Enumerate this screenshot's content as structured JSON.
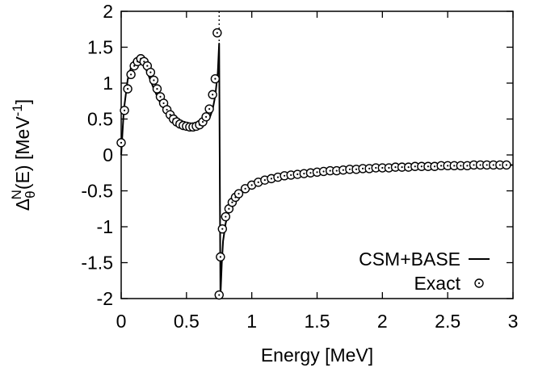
{
  "chart_data": {
    "type": "line",
    "xlabel": "Energy [MeV]",
    "ylabel": {
      "base": "Δ",
      "sub": "θ",
      "sup": "N",
      "arg": "(E) [MeV",
      "unit_sup": "-1",
      "close": "]"
    },
    "xlim": [
      0,
      3
    ],
    "ylim": [
      -2,
      2
    ],
    "x_ticks": [
      0,
      0.5,
      1,
      1.5,
      2,
      2.5,
      3
    ],
    "x_tick_labels": [
      "0",
      "0.5",
      "1",
      "1.5",
      "2",
      "2.5",
      "3"
    ],
    "y_ticks": [
      -2,
      -1.5,
      -1,
      -0.5,
      0,
      0.5,
      1,
      1.5,
      2
    ],
    "y_tick_labels": [
      "-2",
      "-1.5",
      "-1",
      "-0.5",
      "0",
      "0.5",
      "1",
      "1.5",
      "2"
    ],
    "grid": false,
    "legend_position": "bottom-right",
    "threshold_line_x": 0.75,
    "series": [
      {
        "name": "CSM+BASE",
        "style": "line",
        "color": "#000000",
        "x": [
          0,
          0.02,
          0.05,
          0.08,
          0.1,
          0.12,
          0.15,
          0.18,
          0.2,
          0.25,
          0.3,
          0.35,
          0.4,
          0.45,
          0.5,
          0.55,
          0.6,
          0.65,
          0.68,
          0.7,
          0.72,
          0.74,
          0.75,
          0.76,
          0.77,
          0.78,
          0.8,
          0.82,
          0.85,
          0.9,
          0.95,
          1.0,
          1.1,
          1.2,
          1.3,
          1.5,
          1.7,
          2.0,
          2.3,
          2.6,
          3.0
        ],
        "y": [
          0,
          0.62,
          1.05,
          1.25,
          1.32,
          1.34,
          1.31,
          1.24,
          1.15,
          0.92,
          0.72,
          0.58,
          0.48,
          0.42,
          0.39,
          0.38,
          0.4,
          0.46,
          0.53,
          0.63,
          0.82,
          1.15,
          1.55,
          -1.97,
          -1.52,
          -1.2,
          -0.95,
          -0.82,
          -0.68,
          -0.54,
          -0.46,
          -0.4,
          -0.33,
          -0.29,
          -0.26,
          -0.22,
          -0.2,
          -0.18,
          -0.16,
          -0.15,
          -0.14
        ]
      },
      {
        "name": "Exact",
        "style": "points",
        "color": "#000000",
        "x": [
          0,
          0.025,
          0.05,
          0.075,
          0.1,
          0.125,
          0.15,
          0.175,
          0.2,
          0.225,
          0.25,
          0.275,
          0.3,
          0.325,
          0.35,
          0.375,
          0.4,
          0.425,
          0.45,
          0.475,
          0.5,
          0.525,
          0.55,
          0.575,
          0.6,
          0.625,
          0.65,
          0.675,
          0.7,
          0.72,
          0.735,
          0.75,
          0.76,
          0.775,
          0.8,
          0.825,
          0.85,
          0.875,
          0.9,
          0.95,
          1.0,
          1.05,
          1.1,
          1.15,
          1.2,
          1.25,
          1.3,
          1.35,
          1.4,
          1.45,
          1.5,
          1.55,
          1.6,
          1.65,
          1.7,
          1.75,
          1.8,
          1.85,
          1.9,
          1.95,
          2.0,
          2.05,
          2.1,
          2.15,
          2.2,
          2.25,
          2.3,
          2.35,
          2.4,
          2.45,
          2.5,
          2.55,
          2.6,
          2.65,
          2.7,
          2.75,
          2.8,
          2.85,
          2.9,
          2.95
        ],
        "y": [
          0.17,
          0.62,
          0.92,
          1.12,
          1.24,
          1.3,
          1.34,
          1.3,
          1.24,
          1.15,
          1.04,
          0.92,
          0.81,
          0.72,
          0.63,
          0.56,
          0.5,
          0.46,
          0.43,
          0.41,
          0.4,
          0.39,
          0.39,
          0.4,
          0.42,
          0.46,
          0.53,
          0.64,
          0.84,
          1.06,
          1.7,
          -1.95,
          -1.42,
          -1.03,
          -0.86,
          -0.75,
          -0.66,
          -0.59,
          -0.54,
          -0.47,
          -0.42,
          -0.38,
          -0.35,
          -0.33,
          -0.31,
          -0.29,
          -0.28,
          -0.27,
          -0.26,
          -0.25,
          -0.24,
          -0.23,
          -0.22,
          -0.22,
          -0.21,
          -0.2,
          -0.2,
          -0.19,
          -0.19,
          -0.18,
          -0.18,
          -0.18,
          -0.17,
          -0.17,
          -0.17,
          -0.16,
          -0.16,
          -0.16,
          -0.16,
          -0.15,
          -0.15,
          -0.15,
          -0.15,
          -0.15,
          -0.14,
          -0.14,
          -0.14,
          -0.14,
          -0.14,
          -0.14
        ]
      }
    ]
  }
}
